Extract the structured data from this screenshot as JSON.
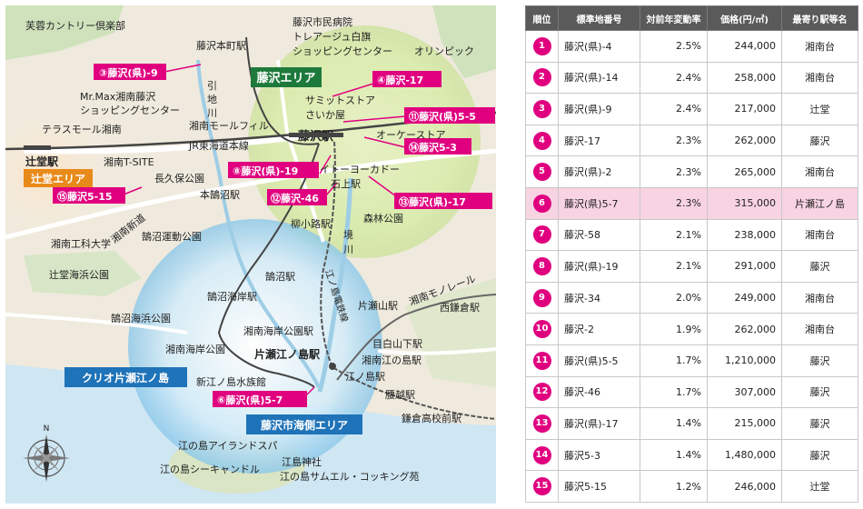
{
  "colors": {
    "pink": "#e0007f",
    "green_area": "#1e7a3c",
    "orange_area": "#e88a1a",
    "blue_area": "#1f73b8",
    "highlight_row": "#f8d3e2"
  },
  "map": {
    "places": [
      "芙蓉カントリー倶楽部",
      "藤沢市民病院",
      "トレアージュ白旗",
      "ショッピングセンター",
      "藤沢本町駅",
      "オリンピック",
      "引",
      "地",
      "川",
      "Mr.Max湘南藤沢",
      "ショッピングセンター",
      "テラスモール湘南",
      "湘南モールフィル",
      "サミットストア",
      "さいか屋",
      "JR東海道本線",
      "藤沢駅",
      "オーケーストア",
      "辻堂駅",
      "湘南T-SITE",
      "長久保公園",
      "イトーヨーカドー",
      "本鵠沼駅",
      "石上駅",
      "湘南新道",
      "柳小路駅",
      "森林公園",
      "鵠沼運動公園",
      "湘南工科大学",
      "境",
      "川",
      "辻堂海浜公園",
      "鵠沼駅",
      "江ノ島電鉄線",
      "鵠沼海岸駅",
      "湘南モノレール",
      "片瀬山駅",
      "西鎌倉駅",
      "鵠沼海浜公園",
      "湘南海岸公園駅",
      "湘南海岸公園",
      "片瀬江ノ島駅",
      "目白山下駅",
      "湘南江の島駅",
      "新江ノ島水族館",
      "江ノ島駅",
      "腰越駅",
      "鎌倉高校前駅",
      "江の島アイランドスパ",
      "江島神社",
      "江の島シーキャンドル",
      "江の島サムエル・コッキング苑"
    ],
    "areas": {
      "fujisawa": "藤沢エリア",
      "tsujido": "辻堂エリア",
      "kaigan": "藤沢市海側エリア",
      "property": "クリオ片瀬江ノ島"
    },
    "points": [
      {
        "num": "③",
        "label": "藤沢(県)-9"
      },
      {
        "num": "④",
        "label": "藤沢-17"
      },
      {
        "num": "⑪",
        "label": "藤沢(県)5-5"
      },
      {
        "num": "⑭",
        "label": "藤沢5-3"
      },
      {
        "num": "⑧",
        "label": "藤沢(県)-19"
      },
      {
        "num": "⑫",
        "label": "藤沢-46"
      },
      {
        "num": "⑬",
        "label": "藤沢(県)-17"
      },
      {
        "num": "⑮",
        "label": "藤沢5-15"
      },
      {
        "num": "⑥",
        "label": "藤沢(県)5-7"
      }
    ],
    "compass_n": "N"
  },
  "table": {
    "headers": [
      "順位",
      "標準地番号",
      "対前年変動率",
      "価格(円/㎡)",
      "最寄り駅等名"
    ],
    "rows": [
      {
        "rank": "1",
        "id": "藤沢(県)-4",
        "pct": "2.5%",
        "price": "244,000",
        "station": "湘南台"
      },
      {
        "rank": "2",
        "id": "藤沢(県)-14",
        "pct": "2.4%",
        "price": "258,000",
        "station": "湘南台"
      },
      {
        "rank": "3",
        "id": "藤沢(県)-9",
        "pct": "2.4%",
        "price": "217,000",
        "station": "辻堂"
      },
      {
        "rank": "4",
        "id": "藤沢-17",
        "pct": "2.3%",
        "price": "262,000",
        "station": "藤沢"
      },
      {
        "rank": "5",
        "id": "藤沢(県)-2",
        "pct": "2.3%",
        "price": "265,000",
        "station": "湘南台"
      },
      {
        "rank": "6",
        "id": "藤沢(県)5-7",
        "pct": "2.3%",
        "price": "315,000",
        "station": "片瀬江ノ島"
      },
      {
        "rank": "7",
        "id": "藤沢-58",
        "pct": "2.1%",
        "price": "238,000",
        "station": "湘南台"
      },
      {
        "rank": "8",
        "id": "藤沢(県)-19",
        "pct": "2.1%",
        "price": "291,000",
        "station": "藤沢"
      },
      {
        "rank": "9",
        "id": "藤沢-34",
        "pct": "2.0%",
        "price": "249,000",
        "station": "湘南台"
      },
      {
        "rank": "10",
        "id": "藤沢-2",
        "pct": "1.9%",
        "price": "262,000",
        "station": "湘南台"
      },
      {
        "rank": "11",
        "id": "藤沢(県)5-5",
        "pct": "1.7%",
        "price": "1,210,000",
        "station": "藤沢"
      },
      {
        "rank": "12",
        "id": "藤沢-46",
        "pct": "1.7%",
        "price": "307,000",
        "station": "藤沢"
      },
      {
        "rank": "13",
        "id": "藤沢(県)-17",
        "pct": "1.4%",
        "price": "215,000",
        "station": "藤沢"
      },
      {
        "rank": "14",
        "id": "藤沢5-3",
        "pct": "1.4%",
        "price": "1,480,000",
        "station": "藤沢"
      },
      {
        "rank": "15",
        "id": "藤沢5-15",
        "pct": "1.2%",
        "price": "246,000",
        "station": "辻堂"
      }
    ]
  }
}
